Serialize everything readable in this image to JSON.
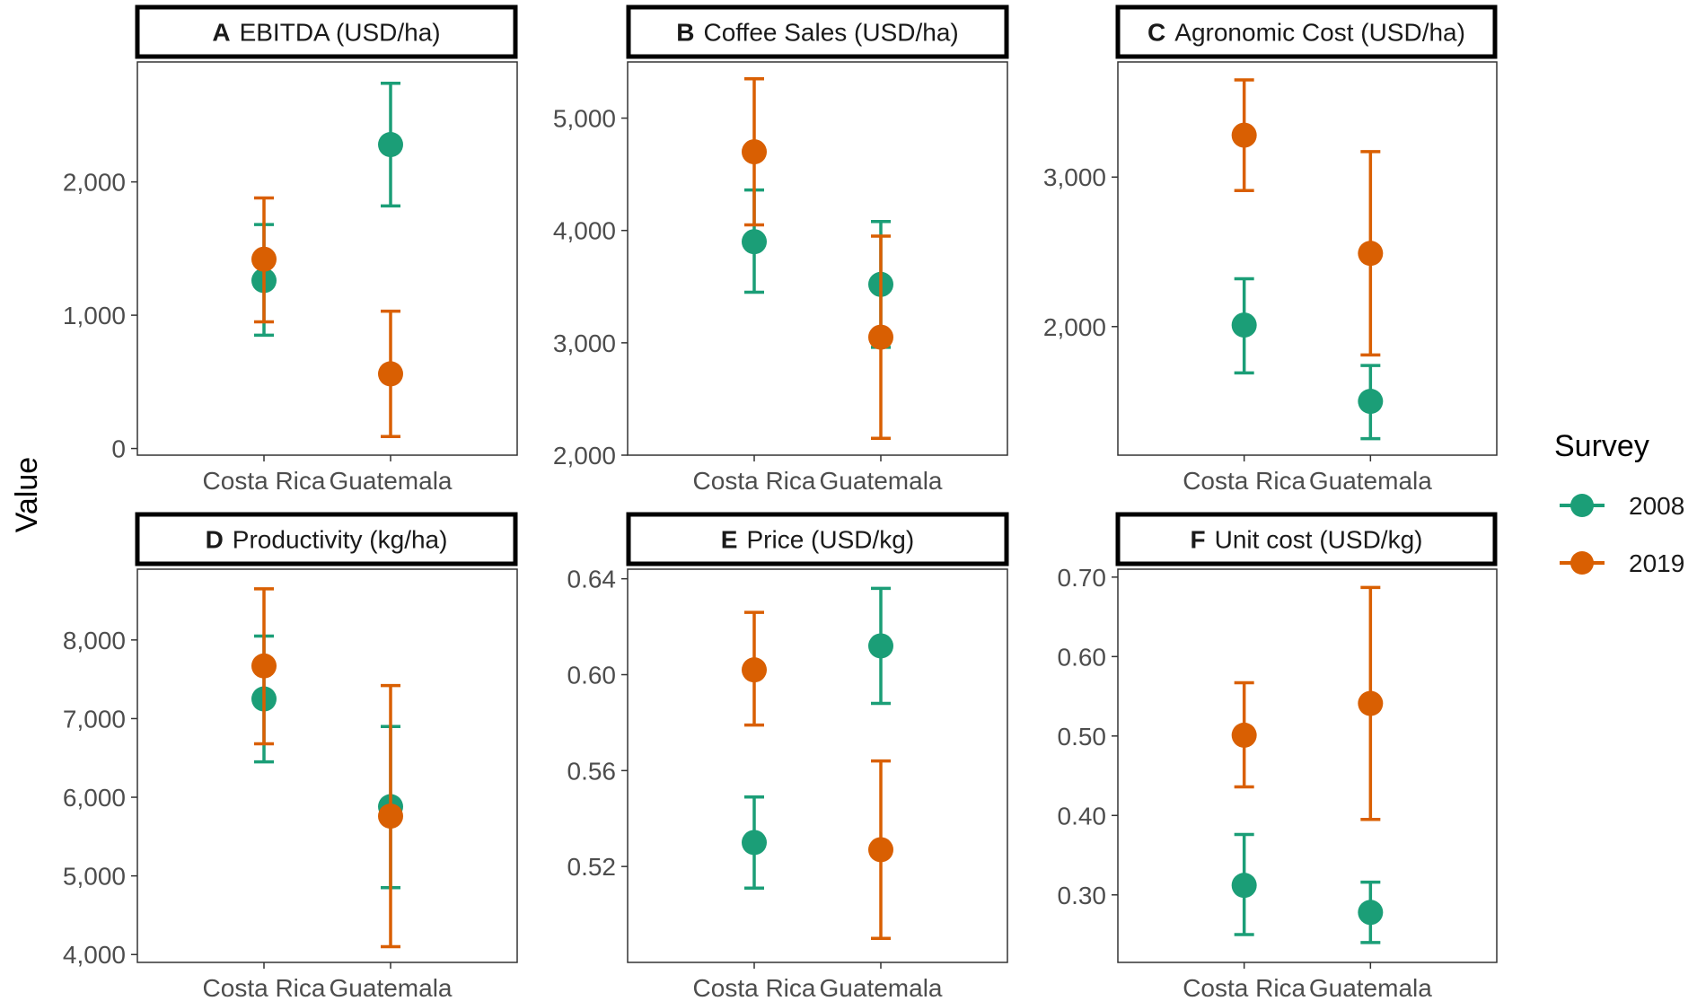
{
  "chart_data": {
    "type": "scatter",
    "y_axis_title": "Value",
    "legend": {
      "title": "Survey",
      "placement": "right",
      "items": [
        {
          "label": "2008",
          "color": "#1b9e77"
        },
        {
          "label": "2019",
          "color": "#d95f02"
        }
      ]
    },
    "panels": [
      {
        "letter": "A",
        "title": "EBITDA (USD/ha)",
        "categories": [
          "Costa Rica",
          "Guatemala"
        ],
        "ylim": [
          -50,
          2900
        ],
        "ticks": [
          0,
          1000,
          2000
        ],
        "tick_labels": [
          "0",
          "1,000",
          "2,000"
        ],
        "series": [
          {
            "name": "2008",
            "color": "#1b9e77",
            "points": [
              {
                "x": "Costa Rica",
                "y": 1260,
                "low": 850,
                "high": 1680
              },
              {
                "x": "Guatemala",
                "y": 2280,
                "low": 1820,
                "high": 2740
              }
            ]
          },
          {
            "name": "2019",
            "color": "#d95f02",
            "points": [
              {
                "x": "Costa Rica",
                "y": 1420,
                "low": 950,
                "high": 1880
              },
              {
                "x": "Guatemala",
                "y": 560,
                "low": 90,
                "high": 1030
              }
            ]
          }
        ]
      },
      {
        "letter": "B",
        "title": "Coffee Sales (USD/ha)",
        "categories": [
          "Costa Rica",
          "Guatemala"
        ],
        "ylim": [
          2000,
          5500
        ],
        "ticks": [
          2000,
          3000,
          4000,
          5000
        ],
        "tick_labels": [
          "2,000",
          "3,000",
          "4,000",
          "5,000"
        ],
        "series": [
          {
            "name": "2008",
            "color": "#1b9e77",
            "points": [
              {
                "x": "Costa Rica",
                "y": 3900,
                "low": 3450,
                "high": 4360
              },
              {
                "x": "Guatemala",
                "y": 3520,
                "low": 2960,
                "high": 4080
              }
            ]
          },
          {
            "name": "2019",
            "color": "#d95f02",
            "points": [
              {
                "x": "Costa Rica",
                "y": 4700,
                "low": 4050,
                "high": 5350
              },
              {
                "x": "Guatemala",
                "y": 3050,
                "low": 2150,
                "high": 3950
              }
            ]
          }
        ]
      },
      {
        "letter": "C",
        "title": "Agronomic Cost (USD/ha)",
        "categories": [
          "Costa Rica",
          "Guatemala"
        ],
        "ylim": [
          1140,
          3770
        ],
        "ticks": [
          2000,
          3000
        ],
        "tick_labels": [
          "2,000",
          "3,000"
        ],
        "series": [
          {
            "name": "2008",
            "color": "#1b9e77",
            "points": [
              {
                "x": "Costa Rica",
                "y": 2010,
                "low": 1690,
                "high": 2320
              },
              {
                "x": "Guatemala",
                "y": 1500,
                "low": 1250,
                "high": 1740
              }
            ]
          },
          {
            "name": "2019",
            "color": "#d95f02",
            "points": [
              {
                "x": "Costa Rica",
                "y": 3280,
                "low": 2910,
                "high": 3650
              },
              {
                "x": "Guatemala",
                "y": 2490,
                "low": 1810,
                "high": 3170
              }
            ]
          }
        ]
      },
      {
        "letter": "D",
        "title": "Productivity (kg/ha)",
        "categories": [
          "Costa Rica",
          "Guatemala"
        ],
        "ylim": [
          3900,
          8900
        ],
        "ticks": [
          4000,
          5000,
          6000,
          7000,
          8000
        ],
        "tick_labels": [
          "4,000",
          "5,000",
          "6,000",
          "7,000",
          "8,000"
        ],
        "series": [
          {
            "name": "2008",
            "color": "#1b9e77",
            "points": [
              {
                "x": "Costa Rica",
                "y": 7250,
                "low": 6450,
                "high": 8050
              },
              {
                "x": "Guatemala",
                "y": 5880,
                "low": 4850,
                "high": 6900
              }
            ]
          },
          {
            "name": "2019",
            "color": "#d95f02",
            "points": [
              {
                "x": "Costa Rica",
                "y": 7670,
                "low": 6680,
                "high": 8650
              },
              {
                "x": "Guatemala",
                "y": 5760,
                "low": 4100,
                "high": 7420
              }
            ]
          }
        ]
      },
      {
        "letter": "E",
        "title": "Price (USD/kg)",
        "categories": [
          "Costa Rica",
          "Guatemala"
        ],
        "ylim": [
          0.48,
          0.644
        ],
        "ticks": [
          0.52,
          0.56,
          0.6,
          0.64
        ],
        "tick_labels": [
          "0.52",
          "0.56",
          "0.60",
          "0.64"
        ],
        "series": [
          {
            "name": "2008",
            "color": "#1b9e77",
            "points": [
              {
                "x": "Costa Rica",
                "y": 0.53,
                "low": 0.511,
                "high": 0.549
              },
              {
                "x": "Guatemala",
                "y": 0.612,
                "low": 0.588,
                "high": 0.636
              }
            ]
          },
          {
            "name": "2019",
            "color": "#d95f02",
            "points": [
              {
                "x": "Costa Rica",
                "y": 0.602,
                "low": 0.579,
                "high": 0.626
              },
              {
                "x": "Guatemala",
                "y": 0.527,
                "low": 0.49,
                "high": 0.564
              }
            ]
          }
        ]
      },
      {
        "letter": "F",
        "title": "Unit cost (USD/kg)",
        "categories": [
          "Costa Rica",
          "Guatemala"
        ],
        "ylim": [
          0.215,
          0.71
        ],
        "ticks": [
          0.3,
          0.4,
          0.5,
          0.6,
          0.7
        ],
        "tick_labels": [
          "0.30",
          "0.40",
          "0.50",
          "0.60",
          "0.70"
        ],
        "series": [
          {
            "name": "2008",
            "color": "#1b9e77",
            "points": [
              {
                "x": "Costa Rica",
                "y": 0.312,
                "low": 0.25,
                "high": 0.376
              },
              {
                "x": "Guatemala",
                "y": 0.278,
                "low": 0.24,
                "high": 0.316
              }
            ]
          },
          {
            "name": "2019",
            "color": "#d95f02",
            "points": [
              {
                "x": "Costa Rica",
                "y": 0.501,
                "low": 0.436,
                "high": 0.567
              },
              {
                "x": "Guatemala",
                "y": 0.541,
                "low": 0.395,
                "high": 0.687
              }
            ]
          }
        ]
      }
    ]
  }
}
